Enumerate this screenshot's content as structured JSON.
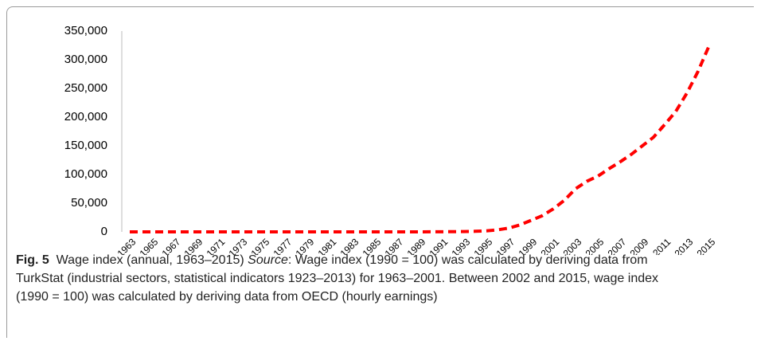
{
  "chart_data": {
    "type": "line",
    "categories": [
      "1963",
      null,
      "1965",
      null,
      "1967",
      null,
      "1969",
      null,
      "1971",
      null,
      "1973",
      null,
      "1975",
      null,
      "1977",
      null,
      "1979",
      null,
      "1981",
      null,
      "1983",
      null,
      "1985",
      null,
      "1987",
      null,
      "1989",
      null,
      "1991",
      null,
      "1993",
      null,
      "1995",
      null,
      "1997",
      null,
      "1999",
      null,
      "2001",
      null,
      "2003",
      null,
      "2005",
      null,
      "2007",
      null,
      "2009",
      null,
      "2011",
      null,
      "2013",
      null,
      "2015"
    ],
    "series": [
      {
        "color": "#ff0000",
        "values": [
          1,
          1,
          1,
          1,
          1,
          2,
          2,
          2,
          3,
          3,
          4,
          5,
          6,
          7,
          8,
          9,
          10,
          12,
          15,
          18,
          22,
          26,
          30,
          38,
          48,
          60,
          75,
          100,
          180,
          330,
          600,
          1000,
          1800,
          3500,
          6500,
          12000,
          20000,
          28000,
          40000,
          55000,
          75000,
          88000,
          97000,
          110000,
          122000,
          135000,
          150000,
          165000,
          187000,
          210000,
          242000,
          280000,
          325000
        ]
      }
    ],
    "ylim": [
      0,
      350000
    ],
    "yticks": [
      0,
      {
        "value": 50000,
        "label": "50,000"
      },
      {
        "value": 100000,
        "label": "100,000"
      },
      {
        "value": 150000,
        "label": "150,000"
      },
      {
        "value": 200000,
        "label": "200,000"
      },
      {
        "value": 250000,
        "label": "250,000"
      },
      {
        "value": 300000,
        "label": "300,000"
      },
      {
        "value": 350000,
        "label": "350,000"
      }
    ],
    "grid": false,
    "line_style": "dashed"
  },
  "caption": {
    "label": "Fig. 5",
    "title": "Wage index (annual, 1963–2015)",
    "source_label": "Source",
    "source_text": ": Wage index (1990 = 100) was calculated by deriving data from TurkStat (industrial sectors, statistical indicators 1923–2013) for 1963–2001. Between 2002 and 2015, wage index (1990 = 100) was calculated by deriving data from OECD (hourly earnings)"
  }
}
